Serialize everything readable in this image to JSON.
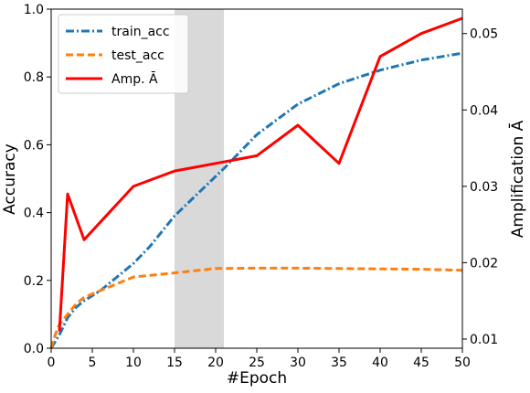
{
  "chart_data": {
    "type": "line",
    "xlabel": "#Epoch",
    "ylabel": "Accuracy",
    "y2label": "Amplification Ā",
    "xlim": [
      0,
      50
    ],
    "ylim": [
      0,
      1.0
    ],
    "y2lim": [
      0.0088,
      0.0532
    ],
    "xticks": [
      "0",
      "5",
      "10",
      "15",
      "20",
      "25",
      "30",
      "35",
      "40",
      "45",
      "50"
    ],
    "yticks": [
      "0.0",
      "0.2",
      "0.4",
      "0.6",
      "0.8",
      "1.0"
    ],
    "y2ticks": [
      "0.01",
      "0.02",
      "0.03",
      "0.04",
      "0.05"
    ],
    "grid": false,
    "legend_position": "top-left",
    "shaded_region": {
      "x_start": 15,
      "x_end": 21,
      "color": "#d9d9d9"
    },
    "series": [
      {
        "name": "train_acc",
        "axis": "left",
        "color": "#1f77b4",
        "style": "dashdot",
        "x": [
          0,
          0.5,
          1,
          2,
          3,
          4,
          6,
          8,
          10,
          12,
          15,
          18,
          21,
          25,
          30,
          35,
          40,
          45,
          50
        ],
        "y": [
          0.0,
          0.02,
          0.04,
          0.09,
          0.12,
          0.14,
          0.17,
          0.21,
          0.25,
          0.3,
          0.39,
          0.46,
          0.53,
          0.63,
          0.72,
          0.78,
          0.82,
          0.85,
          0.87
        ]
      },
      {
        "name": "test_acc",
        "axis": "left",
        "color": "#ff7f0e",
        "style": "dashed",
        "x": [
          0,
          0.5,
          1,
          2,
          3,
          4,
          6,
          8,
          10,
          15,
          20,
          25,
          30,
          35,
          40,
          45,
          50
        ],
        "y": [
          0.0,
          0.04,
          0.07,
          0.1,
          0.13,
          0.15,
          0.17,
          0.19,
          0.21,
          0.222,
          0.235,
          0.236,
          0.236,
          0.235,
          0.234,
          0.233,
          0.23
        ]
      },
      {
        "name": "Amp. Ā",
        "axis": "right",
        "color": "#ff0000",
        "style": "solid",
        "x": [
          1,
          2,
          4,
          10,
          15,
          20,
          25,
          30,
          35,
          40,
          45,
          50
        ],
        "y": [
          0.011,
          0.029,
          0.023,
          0.03,
          0.032,
          0.033,
          0.034,
          0.038,
          0.033,
          0.047,
          0.05,
          0.052
        ]
      }
    ]
  }
}
